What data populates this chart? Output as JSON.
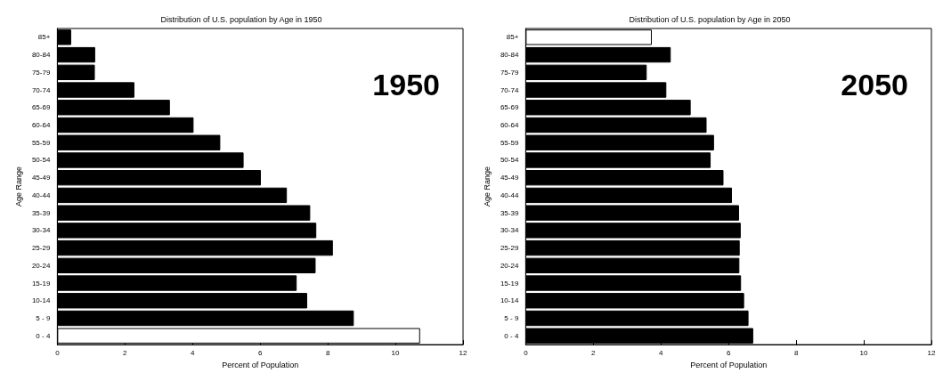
{
  "chart_data": [
    {
      "type": "bar",
      "orientation": "horizontal",
      "title": "Distribution of U.S. population by Age in 1950",
      "xlabel": "Percent of Population",
      "ylabel": "Age Range",
      "annotations": [
        "1950"
      ],
      "categories": [
        "85+",
        "80-84",
        "75-79",
        "70-74",
        "65-69",
        "60-64",
        "55-59",
        "50-54",
        "45-49",
        "40-44",
        "35-39",
        "30-34",
        "25-29",
        "20-24",
        "15-19",
        "10-14",
        "5 - 9",
        "0 - 4"
      ],
      "values": [
        0.41,
        1.12,
        1.11,
        2.28,
        3.33,
        4.03,
        4.82,
        5.51,
        6.02,
        6.79,
        7.48,
        7.66,
        8.15,
        7.64,
        7.08,
        7.39,
        8.77,
        10.73
      ],
      "colors": [
        "#000000",
        "#000000",
        "#000000",
        "#000000",
        "#000000",
        "#000000",
        "#000000",
        "#000000",
        "#000000",
        "#000000",
        "#000000",
        "#000000",
        "#000000",
        "#000000",
        "#000000",
        "#000000",
        "#000000",
        "#ffffff"
      ],
      "xlim": [
        0,
        12
      ],
      "xticks": [
        0,
        2,
        4,
        6,
        8,
        10,
        12
      ],
      "grid": false
    },
    {
      "type": "bar",
      "orientation": "horizontal",
      "title": "Distribution of U.S. population by Age in 2050",
      "xlabel": "Percent of Population",
      "ylabel": "Age Range",
      "annotations": [
        "2050"
      ],
      "categories": [
        "85+",
        "80-84",
        "75-79",
        "70-74",
        "65-69",
        "60-64",
        "55-59",
        "50-54",
        "45-49",
        "40-44",
        "35-39",
        "30-34",
        "25-29",
        "20-24",
        "15-19",
        "10-14",
        "5 - 9",
        "0 - 4"
      ],
      "values": [
        3.73,
        4.29,
        3.58,
        4.16,
        4.88,
        5.35,
        5.57,
        5.47,
        5.85,
        6.1,
        6.31,
        6.36,
        6.33,
        6.32,
        6.37,
        6.46,
        6.59,
        6.73
      ],
      "colors": [
        "#ffffff",
        "#000000",
        "#000000",
        "#000000",
        "#000000",
        "#000000",
        "#000000",
        "#000000",
        "#000000",
        "#000000",
        "#000000",
        "#000000",
        "#000000",
        "#000000",
        "#000000",
        "#000000",
        "#000000",
        "#000000"
      ],
      "xlim": [
        0,
        12
      ],
      "xticks": [
        0,
        2,
        4,
        6,
        8,
        10,
        12
      ],
      "grid": false
    }
  ]
}
